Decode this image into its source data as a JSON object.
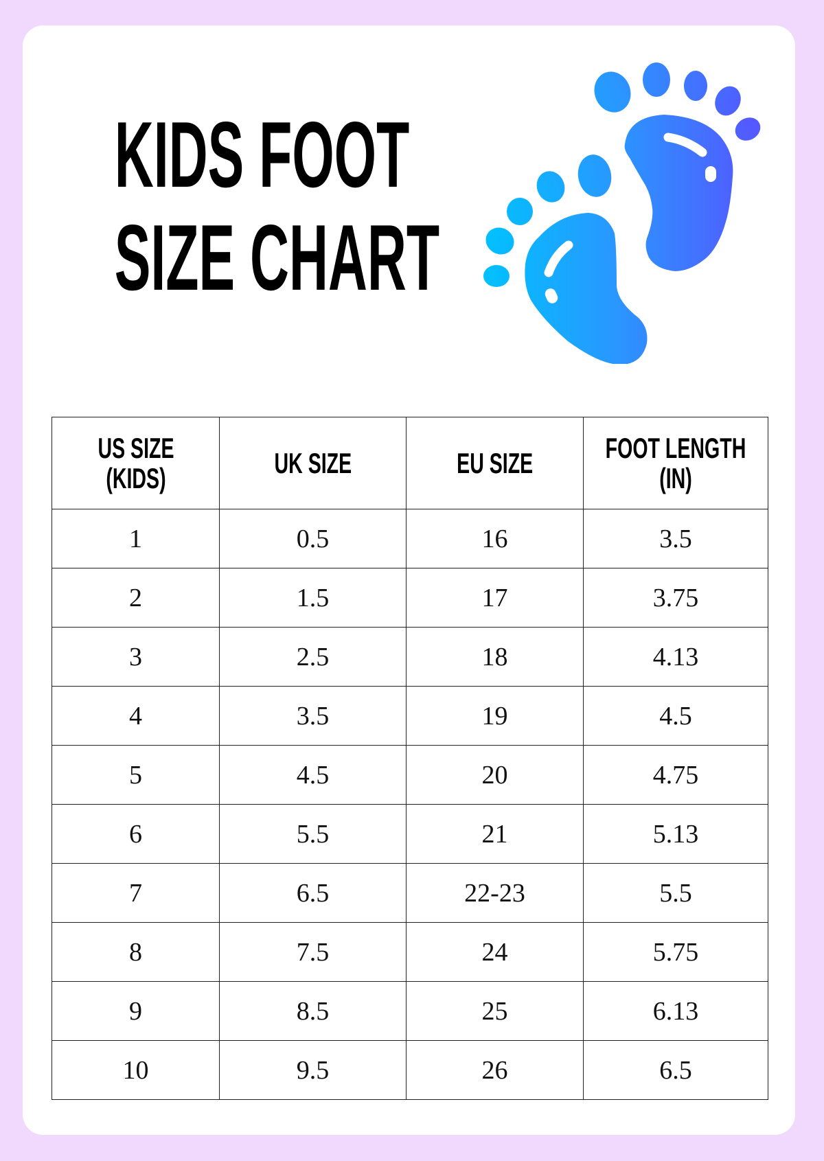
{
  "title": {
    "line1": "KIDS FOOT",
    "line2": "SIZE CHART"
  },
  "illustration": {
    "icon": "baby-footprints-icon",
    "gradient_start": "#00c2ff",
    "gradient_end": "#5458ff"
  },
  "colors": {
    "background": "#f0d9fc",
    "card": "#ffffff",
    "text": "#000000"
  },
  "table": {
    "headers": [
      "US SIZE (KIDS)",
      "UK SIZE",
      "EU SIZE",
      "FOOT LENGTH (IN)"
    ],
    "rows": [
      [
        "1",
        "0.5",
        "16",
        "3.5"
      ],
      [
        "2",
        "1.5",
        "17",
        "3.75"
      ],
      [
        "3",
        "2.5",
        "18",
        "4.13"
      ],
      [
        "4",
        "3.5",
        "19",
        "4.5"
      ],
      [
        "5",
        "4.5",
        "20",
        "4.75"
      ],
      [
        "6",
        "5.5",
        "21",
        "5.13"
      ],
      [
        "7",
        "6.5",
        "22-23",
        "5.5"
      ],
      [
        "8",
        "7.5",
        "24",
        "5.75"
      ],
      [
        "9",
        "8.5",
        "25",
        "6.13"
      ],
      [
        "10",
        "9.5",
        "26",
        "6.5"
      ]
    ]
  }
}
